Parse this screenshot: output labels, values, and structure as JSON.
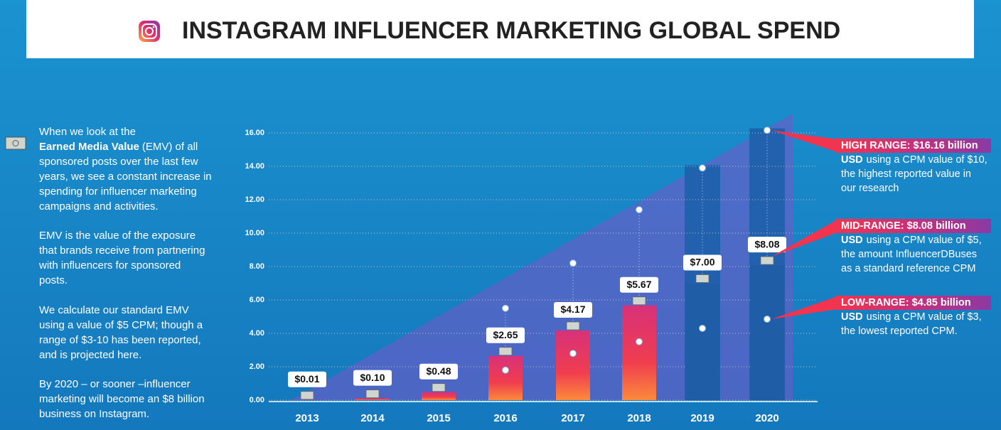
{
  "chart_data": {
    "type": "bar",
    "title": "INSTAGRAM INFLUENCER MARKETING GLOBAL SPEND",
    "categories": [
      "2013",
      "2014",
      "2015",
      "2016",
      "2017",
      "2018",
      "2019",
      "2020"
    ],
    "values": [
      0.01,
      0.1,
      0.48,
      2.65,
      4.17,
      5.67,
      7.0,
      8.08
    ],
    "value_labels": [
      "$0.01",
      "$0.10",
      "$0.48",
      "$2.65",
      "$4.17",
      "$5.67",
      "$7.00",
      "$8.08"
    ],
    "colors": [
      "#ee3d55",
      "#ee3d55",
      "#ee3d55",
      "#ee3d55",
      "#ee3d55",
      "#ee3d55",
      "#1f5ea6",
      "#1f5ea6"
    ],
    "range_points": {
      "high": [
        null,
        null,
        null,
        5.5,
        8.2,
        11.4,
        13.9,
        16.16
      ],
      "low": [
        null,
        null,
        null,
        1.8,
        2.8,
        3.5,
        4.3,
        4.85
      ],
      "color": "#ffffff"
    },
    "ylim": [
      0,
      16.5
    ],
    "yticks": [
      {
        "value": 0,
        "label": "0.00"
      },
      {
        "value": 2,
        "label": "2.00"
      },
      {
        "value": 4,
        "label": "4.00"
      },
      {
        "value": 6,
        "label": "6.00"
      },
      {
        "value": 8,
        "label": "8.00"
      },
      {
        "value": 10,
        "label": "10.00"
      },
      {
        "value": 12,
        "label": "12.00"
      },
      {
        "value": 14,
        "label": "14.00"
      },
      {
        "value": 16,
        "label": "16.00"
      }
    ],
    "grid": true,
    "annotations": [
      {
        "heading": "HIGH RANGE: $16.16 billion",
        "lead": "USD",
        "lines": [
          "using a CPM value of $10,",
          "the highest reported value in",
          "our research"
        ]
      },
      {
        "heading": "MID-RANGE: $8.08 billion",
        "lead": "USD",
        "lines": [
          "using a CPM value of $5,",
          "the amount InfluencerDBuses",
          "as a standard reference CPM"
        ]
      },
      {
        "heading": "LOW-RANGE: $4.85 billion",
        "lead": "USD",
        "lines": [
          "using a CPM value of $3,",
          "the lowest reported CPM."
        ]
      }
    ]
  },
  "notes": {
    "paragraphs": [
      {
        "lines": [
          "When we look at the",
          {
            "bold": "Earned Media Value",
            "text": "(EMV) of all"
          },
          "sponsored posts over the last few",
          "years, we see a constant increase in",
          "spending for influencer marketing",
          "campaigns and activities."
        ]
      },
      {
        "lines": [
          "EMV is the value of the exposure",
          "that brands receive from partnering",
          "with influencers for sponsored",
          "posts."
        ]
      },
      {
        "lines": [
          "We calculate our standard EMV",
          "using a value of $5 CPM; though a",
          "range of $3-10 has been reported,",
          "and is projected here."
        ]
      },
      {
        "lines": [
          "By 2020 – or sooner –influencer",
          "marketing will become an $8 billion",
          "business on Instagram."
        ]
      }
    ]
  }
}
